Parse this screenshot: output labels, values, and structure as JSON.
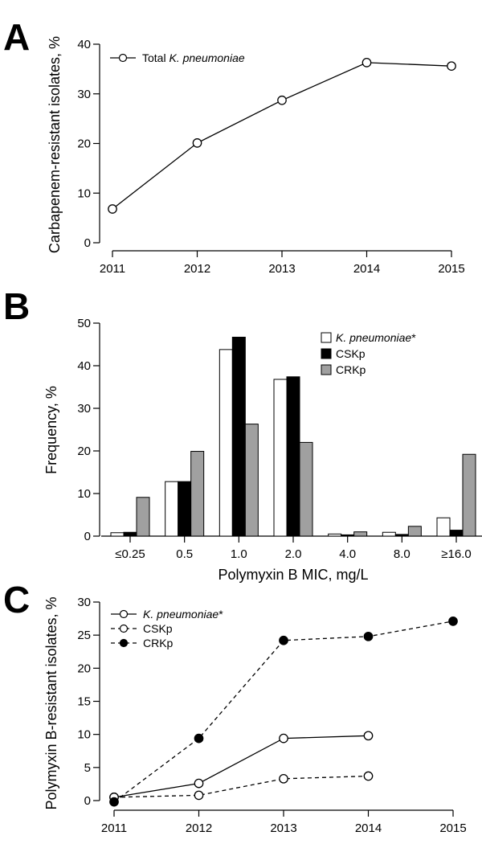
{
  "chart_data": [
    {
      "panel": "A",
      "type": "line",
      "title": "",
      "xlabel": "",
      "ylabel": "Carbapenem-resistant isolates, %",
      "ylim": [
        0,
        40
      ],
      "yticks": [
        0,
        10,
        20,
        30,
        40
      ],
      "categories": [
        "2011",
        "2012",
        "2013",
        "2014",
        "2015"
      ],
      "legend_position": "top-left",
      "grid": false,
      "series": [
        {
          "name_parts": [
            "Total ",
            "K. pneumoniae"
          ],
          "name": "Total K. pneumoniae",
          "marker": "open-circle",
          "dash": "solid",
          "values": [
            6.8,
            20.1,
            28.7,
            36.3,
            35.6
          ]
        }
      ]
    },
    {
      "panel": "B",
      "type": "bar",
      "title": "",
      "xlabel": "Polymyxin B MIC, mg/L",
      "ylabel": "Frequency, %",
      "ylim": [
        0,
        50
      ],
      "yticks": [
        0,
        10,
        20,
        30,
        40,
        50
      ],
      "categories": [
        "≤0.25",
        "0.5",
        "1.0",
        "2.0",
        "4.0",
        "8.0",
        "≥16.0"
      ],
      "legend_position": "top-right",
      "grid": false,
      "series": [
        {
          "name_parts": [
            "K. pneumoniae",
            "*"
          ],
          "name": "K. pneumoniae*",
          "color": "#ffffff",
          "values": [
            0.8,
            12.8,
            43.8,
            36.8,
            0.5,
            0.9,
            4.3
          ]
        },
        {
          "name_parts": [
            "CSKp",
            ""
          ],
          "name": "CSKp",
          "color": "#000000",
          "values": [
            0.9,
            12.8,
            46.7,
            37.4,
            0.3,
            0.4,
            1.4
          ]
        },
        {
          "name_parts": [
            "CRKp",
            ""
          ],
          "name": "CRKp",
          "color": "#a0a0a0",
          "values": [
            9.1,
            19.9,
            26.3,
            22.0,
            1.0,
            2.3,
            19.2
          ]
        }
      ]
    },
    {
      "panel": "C",
      "type": "line",
      "title": "",
      "xlabel": "",
      "ylabel": "Polymyxin B-resistant isolates, %",
      "ylim": [
        0,
        30
      ],
      "yticks": [
        0,
        5,
        10,
        15,
        20,
        25,
        30
      ],
      "categories": [
        "2011",
        "2012",
        "2013",
        "2014",
        "2015"
      ],
      "legend_position": "top-left",
      "grid": false,
      "series": [
        {
          "name_parts": [
            "K. pneumoniae",
            "*"
          ],
          "name": "K. pneumoniae*",
          "marker": "open-circle",
          "dash": "solid",
          "values": [
            0.5,
            2.6,
            9.4,
            9.8,
            null
          ]
        },
        {
          "name_parts": [
            "CSKp",
            ""
          ],
          "name": "CSKp",
          "marker": "open-circle",
          "dash": "dashed",
          "values": [
            0.5,
            0.8,
            3.3,
            3.7,
            null
          ]
        },
        {
          "name_parts": [
            "CRKp",
            ""
          ],
          "name": "CRKp",
          "marker": "filled-circle",
          "dash": "dashed",
          "values": [
            -0.2,
            9.4,
            24.2,
            24.8,
            27.1
          ]
        }
      ]
    }
  ],
  "panels": {
    "a": "A",
    "b": "B",
    "c": "C"
  }
}
